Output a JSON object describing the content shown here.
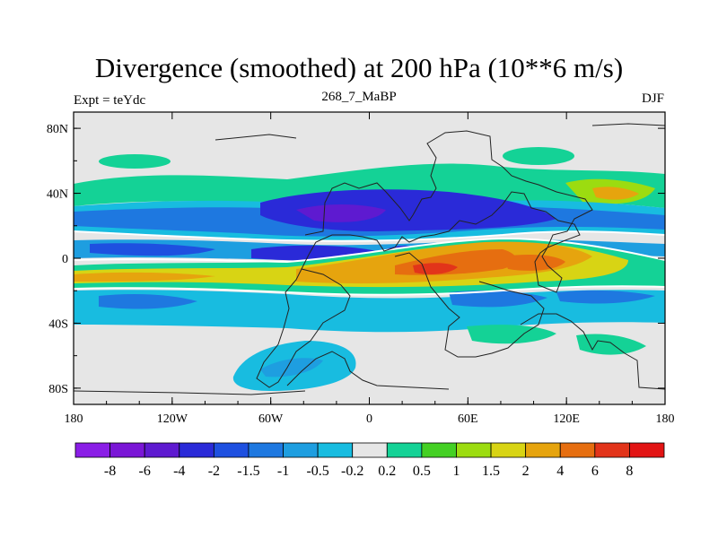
{
  "chart_data": {
    "type": "heatmap",
    "title": "Divergence (smoothed) at 200 hPa (10**6 m/s)",
    "left_subtitle": "Expt = teYdc",
    "center_subtitle": "268_7_MaBP",
    "right_subtitle": "DJF",
    "x_ticks": [
      {
        "value": -180,
        "label": "180"
      },
      {
        "value": -120,
        "label": "120W"
      },
      {
        "value": -60,
        "label": "60W"
      },
      {
        "value": 0,
        "label": "0"
      },
      {
        "value": 60,
        "label": "60E"
      },
      {
        "value": 120,
        "label": "120E"
      },
      {
        "value": 180,
        "label": "180"
      }
    ],
    "y_ticks": [
      {
        "value": 80,
        "label": "80N"
      },
      {
        "value": 40,
        "label": "40N"
      },
      {
        "value": 0,
        "label": "0"
      },
      {
        "value": -40,
        "label": "40S"
      },
      {
        "value": -80,
        "label": "80S"
      }
    ],
    "xlim": [
      -180,
      180
    ],
    "ylim": [
      -90,
      90
    ],
    "colorbar": {
      "levels": [
        "-8",
        "-6",
        "-4",
        "-2",
        "-1.5",
        "-1",
        "-0.5",
        "-0.2",
        "0.2",
        "0.5",
        "1",
        "1.5",
        "2",
        "4",
        "6",
        "8"
      ],
      "colors": [
        "#8a1ee6",
        "#7a16d6",
        "#5e1ad0",
        "#2a2ad8",
        "#1e50e0",
        "#1e78e0",
        "#1e9ee0",
        "#18bce0",
        "#e6e6e6",
        "#14d296",
        "#44d024",
        "#9cdc10",
        "#d8d414",
        "#e6a40e",
        "#e66e10",
        "#e2341a",
        "#e21414"
      ]
    },
    "features": [
      {
        "name": "north-mid-lat-green-band",
        "lon": [
          -180,
          180
        ],
        "lat": [
          35,
          55
        ],
        "value": 0.5
      },
      {
        "name": "north-subtropical-convergence",
        "lon": [
          -180,
          180
        ],
        "lat": [
          10,
          35
        ],
        "value": -1.5
      },
      {
        "name": "eurasian-strong-convergence",
        "lon": [
          -60,
          40
        ],
        "lat": [
          15,
          32
        ],
        "value": -4
      },
      {
        "name": "tropical-divergence-band",
        "lon": [
          -180,
          180
        ],
        "lat": [
          -20,
          -5
        ],
        "value": 2
      },
      {
        "name": "african-indian-strong-divergence",
        "lon": [
          -40,
          120
        ],
        "lat": [
          -18,
          5
        ],
        "value": 4
      },
      {
        "name": "southern-convergence-band",
        "lon": [
          -180,
          180
        ],
        "lat": [
          -45,
          -20
        ],
        "value": -0.5
      },
      {
        "name": "antarctic-blue-patch",
        "lon": [
          -80,
          -20
        ],
        "lat": [
          -80,
          -55
        ],
        "value": -1
      }
    ]
  }
}
